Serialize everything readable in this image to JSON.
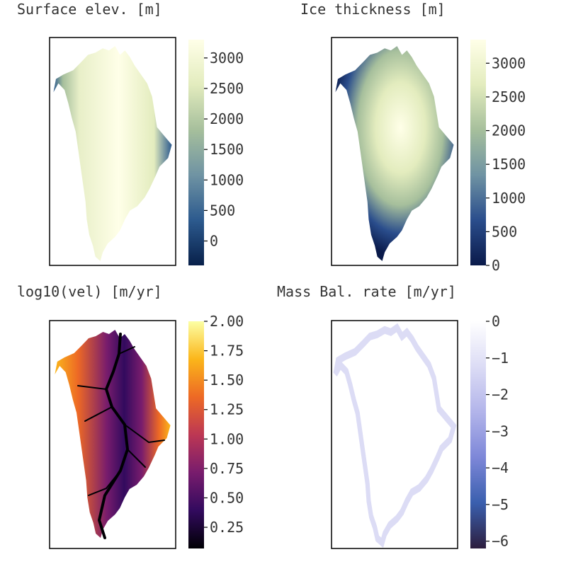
{
  "chart_data": [
    {
      "type": "heatmap",
      "title": "Surface elev. [m]",
      "colorbar": {
        "ticks": [
          "0",
          "500",
          "1000",
          "1500",
          "2000",
          "2500",
          "3000"
        ],
        "range": [
          -400,
          3300
        ],
        "colormap": [
          "#08204a",
          "#2c5a8e",
          "#6f93a3",
          "#a6bf9c",
          "#e3ecbe",
          "#ffffe8"
        ]
      }
    },
    {
      "type": "heatmap",
      "title": "Ice thickness [m]",
      "colorbar": {
        "ticks": [
          "0",
          "500",
          "1000",
          "1500",
          "2000",
          "2500",
          "3000"
        ],
        "range": [
          0,
          3350
        ],
        "colormap": [
          "#0a1a4a",
          "#2a4d8c",
          "#6f93a3",
          "#a6bf9c",
          "#e3ecbe",
          "#ffffe8"
        ]
      }
    },
    {
      "type": "heatmap",
      "title": "log10(vel) [m/yr]",
      "colorbar": {
        "ticks": [
          "0.25",
          "0.50",
          "0.75",
          "1.00",
          "1.25",
          "1.50",
          "1.75",
          "2.00"
        ],
        "range": [
          0.07,
          2.0
        ],
        "colormap": [
          "#000004",
          "#320a5e",
          "#781c6d",
          "#bc3754",
          "#ed6925",
          "#fbb61a",
          "#fcffa4"
        ]
      }
    },
    {
      "type": "heatmap",
      "title": "Mass Bal. rate [m/yr]",
      "colorbar": {
        "ticks": [
          "0",
          "−1",
          "−2",
          "−3",
          "−4",
          "−5",
          "−6"
        ],
        "range": [
          -6.2,
          0
        ],
        "colormap": [
          "#2d1e3e",
          "#3a5fae",
          "#7d87d8",
          "#b2b4ea",
          "#dcdcf5",
          "#ffffff"
        ]
      }
    }
  ]
}
